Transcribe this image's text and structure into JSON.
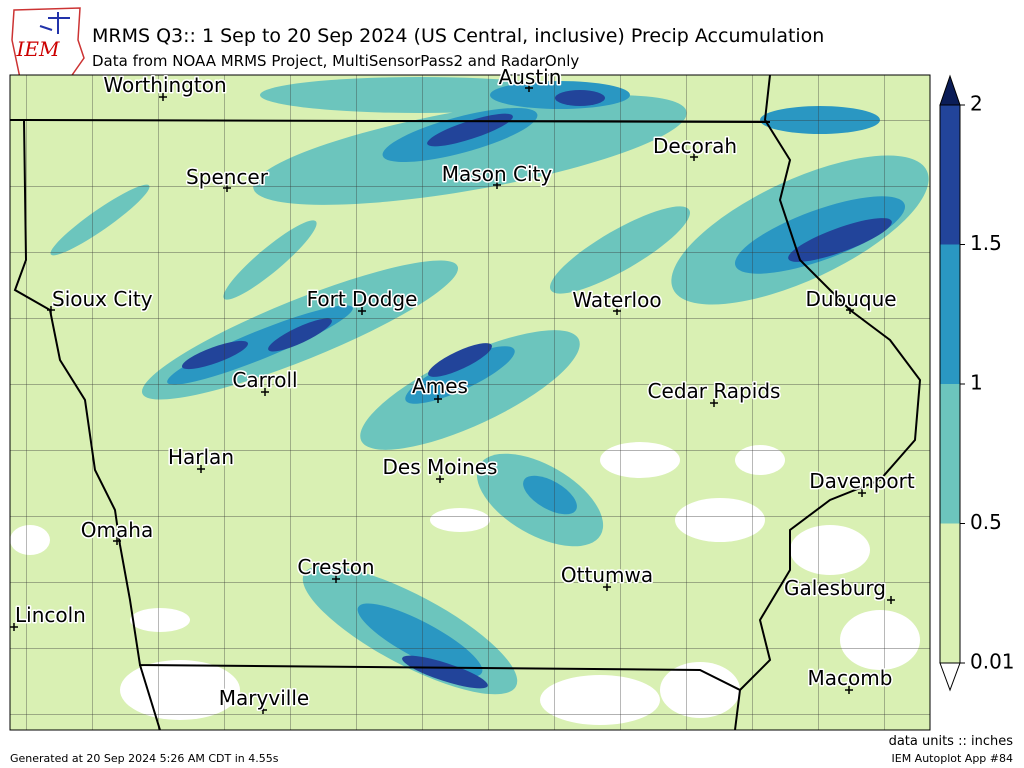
{
  "header": {
    "logo": "IEM",
    "title": "MRMS Q3:: 1 Sep to 20 Sep 2024 (US Central, inclusive) Precip Accumulation",
    "subtitle": "Data from NOAA MRMS Project, MultiSensorPass2 and RadarOnly"
  },
  "cities": [
    "Worthington",
    "Austin",
    "Spencer",
    "Mason City",
    "Decorah",
    "Sioux City",
    "Fort Dodge",
    "Waterloo",
    "Dubuque",
    "Carroll",
    "Ames",
    "Cedar Rapids",
    "Harlan",
    "Des Moines",
    "Davenport",
    "Omaha",
    "Creston",
    "Ottumwa",
    "Galesburg",
    "Lincoln",
    "Maryville",
    "Macomb"
  ],
  "colorbar": {
    "ticks": [
      0.01,
      0.5,
      1,
      1.5,
      2
    ],
    "colors": [
      "#d9f0b3",
      "#6cc5bd",
      "#2a97c2",
      "#22449a"
    ],
    "over_color": "#0b1d57",
    "under_color": "#ffffff"
  },
  "footer": {
    "units": "data units :: inches",
    "generated": "Generated at 20 Sep 2024 5:26 AM CDT in 4.55s",
    "app": "IEM Autoplot App #84"
  }
}
